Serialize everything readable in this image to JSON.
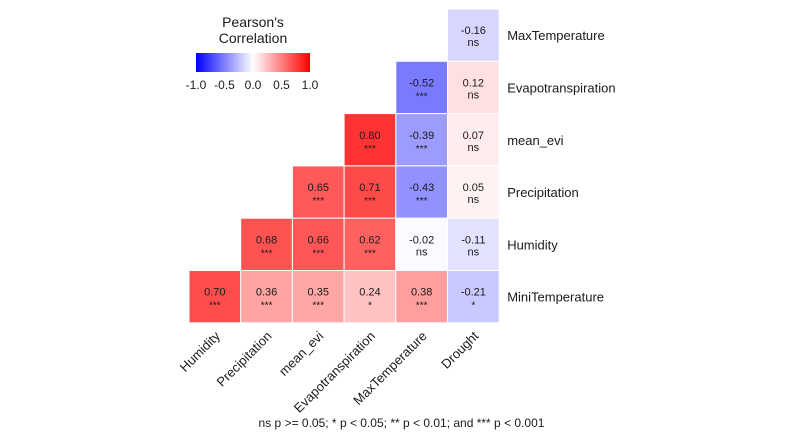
{
  "chart_data": {
    "type": "heatmap",
    "legend": {
      "title_line1": "Pearson's",
      "title_line2": "Correlation",
      "ticks": [
        "-1.0",
        "-0.5",
        "0.0",
        "0.5",
        "1.0"
      ],
      "low_color": "#0000ff",
      "mid_color": "#ffffff",
      "high_color": "#ff0000",
      "range": [
        -1,
        1
      ]
    },
    "x_categories": [
      "Humidity",
      "Precipitation",
      "mean_evi",
      "Evapotranspiration",
      "MaxTemperature",
      "Drought"
    ],
    "y_categories": [
      "MaxTemperature",
      "Evapotranspiration",
      "mean_evi",
      "Precipitation",
      "Humidity",
      "MiniTemperature"
    ],
    "cells": [
      {
        "x": "Drought",
        "y": "MaxTemperature",
        "value": -0.16,
        "label": "-0.16",
        "sig": "ns"
      },
      {
        "x": "MaxTemperature",
        "y": "Evapotranspiration",
        "value": -0.52,
        "label": "-0.52",
        "sig": "***"
      },
      {
        "x": "Drought",
        "y": "Evapotranspiration",
        "value": 0.12,
        "label": "0.12",
        "sig": "ns"
      },
      {
        "x": "Evapotranspiration",
        "y": "mean_evi",
        "value": 0.8,
        "label": "0.80",
        "sig": "***"
      },
      {
        "x": "MaxTemperature",
        "y": "mean_evi",
        "value": -0.39,
        "label": "-0.39",
        "sig": "***"
      },
      {
        "x": "Drought",
        "y": "mean_evi",
        "value": 0.07,
        "label": "0.07",
        "sig": "ns"
      },
      {
        "x": "mean_evi",
        "y": "Precipitation",
        "value": 0.65,
        "label": "0.65",
        "sig": "***"
      },
      {
        "x": "Evapotranspiration",
        "y": "Precipitation",
        "value": 0.71,
        "label": "0.71",
        "sig": "***"
      },
      {
        "x": "MaxTemperature",
        "y": "Precipitation",
        "value": -0.43,
        "label": "-0.43",
        "sig": "***"
      },
      {
        "x": "Drought",
        "y": "Precipitation",
        "value": 0.05,
        "label": "0.05",
        "sig": "ns"
      },
      {
        "x": "Precipitation",
        "y": "Humidity",
        "value": 0.68,
        "label": "0.68",
        "sig": "***"
      },
      {
        "x": "mean_evi",
        "y": "Humidity",
        "value": 0.66,
        "label": "0.66",
        "sig": "***"
      },
      {
        "x": "Evapotranspiration",
        "y": "Humidity",
        "value": 0.62,
        "label": "0.62",
        "sig": "***"
      },
      {
        "x": "MaxTemperature",
        "y": "Humidity",
        "value": -0.02,
        "label": "-0.02",
        "sig": "ns"
      },
      {
        "x": "Drought",
        "y": "Humidity",
        "value": -0.11,
        "label": "-0.11",
        "sig": "ns"
      },
      {
        "x": "Humidity",
        "y": "MiniTemperature",
        "value": 0.7,
        "label": "0.70",
        "sig": "***"
      },
      {
        "x": "Precipitation",
        "y": "MiniTemperature",
        "value": 0.36,
        "label": "0.36",
        "sig": "***"
      },
      {
        "x": "mean_evi",
        "y": "MiniTemperature",
        "value": 0.35,
        "label": "0.35",
        "sig": "***"
      },
      {
        "x": "Evapotranspiration",
        "y": "MiniTemperature",
        "value": 0.24,
        "label": "0.24",
        "sig": "*"
      },
      {
        "x": "MaxTemperature",
        "y": "MiniTemperature",
        "value": 0.38,
        "label": "0.38",
        "sig": "***"
      },
      {
        "x": "Drought",
        "y": "MiniTemperature",
        "value": -0.21,
        "label": "-0.21",
        "sig": "*"
      }
    ],
    "footnote": "ns p >= 0.05; * p < 0.05; ** p < 0.01; and *** p < 0.001"
  }
}
